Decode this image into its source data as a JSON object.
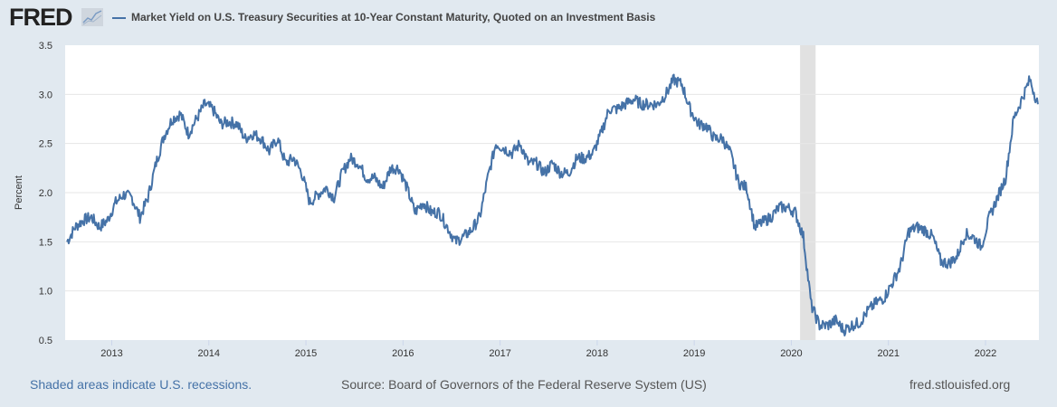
{
  "header": {
    "logo": "FRED",
    "legend_label": "Market Yield on U.S. Treasury Securities at 10-Year Constant Maturity, Quoted on an Investment Basis"
  },
  "footer": {
    "recession_note": "Shaded areas indicate U.S. recessions.",
    "source": "Source: Board of Governors of the Federal Reserve System (US)",
    "site": "fred.stlouisfed.org"
  },
  "colors": {
    "series": "#4572a7",
    "recession": "#e1e1e1",
    "background": "#e1e9f0"
  },
  "chart_data": {
    "type": "line",
    "title": "Market Yield on U.S. Treasury Securities at 10-Year Constant Maturity, Quoted on an Investment Basis",
    "xlabel": "",
    "ylabel": "Percent",
    "xlim": [
      2012.52,
      2022.55
    ],
    "ylim": [
      0.5,
      3.5
    ],
    "yticks": [
      "0.5",
      "1.0",
      "1.5",
      "2.0",
      "2.5",
      "3.0",
      "3.5"
    ],
    "xticks": [
      "2013",
      "2014",
      "2015",
      "2016",
      "2017",
      "2018",
      "2019",
      "2020",
      "2021",
      "2022"
    ],
    "recessions": [
      [
        2020.09,
        2020.25
      ]
    ],
    "grid": true,
    "series": [
      {
        "name": "Market Yield on U.S. Treasury Securities at 10-Year Constant Maturity",
        "start": 2012.54,
        "step_months": 1,
        "values": [
          1.5,
          1.65,
          1.72,
          1.75,
          1.65,
          1.72,
          1.9,
          1.98,
          1.95,
          1.75,
          1.95,
          2.3,
          2.58,
          2.75,
          2.8,
          2.6,
          2.75,
          2.9,
          2.85,
          2.7,
          2.72,
          2.7,
          2.55,
          2.6,
          2.55,
          2.42,
          2.55,
          2.3,
          2.35,
          2.2,
          1.9,
          1.98,
          2.05,
          1.95,
          2.2,
          2.35,
          2.3,
          2.15,
          2.15,
          2.05,
          2.25,
          2.25,
          2.05,
          1.8,
          1.9,
          1.8,
          1.8,
          1.65,
          1.5,
          1.55,
          1.62,
          1.75,
          2.15,
          2.5,
          2.45,
          2.4,
          2.5,
          2.3,
          2.3,
          2.2,
          2.3,
          2.2,
          2.2,
          2.35,
          2.35,
          2.4,
          2.6,
          2.85,
          2.85,
          2.9,
          2.95,
          2.9,
          2.9,
          2.9,
          3.0,
          3.15,
          3.1,
          2.85,
          2.7,
          2.68,
          2.55,
          2.55,
          2.4,
          2.1,
          2.05,
          1.65,
          1.7,
          1.75,
          1.85,
          1.85,
          1.8,
          1.55,
          0.85,
          0.65,
          0.65,
          0.7,
          0.6,
          0.65,
          0.68,
          0.8,
          0.88,
          0.93,
          1.08,
          1.25,
          1.6,
          1.65,
          1.62,
          1.55,
          1.3,
          1.28,
          1.35,
          1.58,
          1.55,
          1.45,
          1.75,
          1.95,
          2.15,
          2.75,
          2.95,
          3.15,
          2.9
        ]
      }
    ]
  }
}
